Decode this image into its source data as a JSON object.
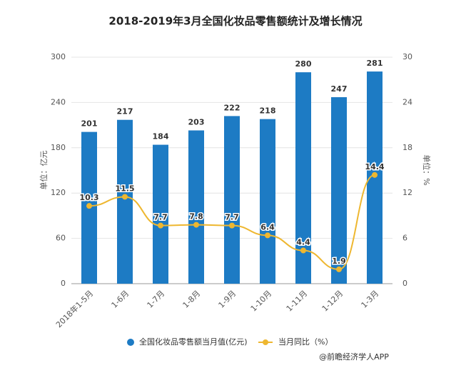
{
  "chart_data": {
    "type": "bar-line",
    "title": "2018-2019年3月全国化妆品零售额统计及增长情况",
    "categories": [
      "2018年1-5月",
      "1-6月",
      "1-7月",
      "1-8月",
      "1-9月",
      "1-10月",
      "1-11月",
      "1-12月",
      "1-3月"
    ],
    "series": [
      {
        "name": "全国化妆品零售额当月值(亿元)",
        "color": "#1d7bc4",
        "type": "bar",
        "values": [
          201,
          217,
          184,
          203,
          222,
          218,
          280,
          247,
          281
        ]
      },
      {
        "name": "当月同比（%）",
        "color": "#eeb730",
        "type": "line",
        "axis": "y2",
        "values": [
          10.3,
          11.5,
          7.7,
          7.8,
          7.7,
          6.4,
          4.4,
          1.9,
          14.4
        ]
      }
    ],
    "ylabel": "单位：亿元",
    "y2label": "单位：%",
    "ylim": [
      0,
      300
    ],
    "yticks": [
      0,
      60,
      120,
      180,
      240,
      300
    ],
    "y2lim": [
      0,
      30
    ],
    "y2ticks": [
      0,
      6,
      12,
      18,
      24,
      30
    ],
    "source": "@前瞻经济学人APP"
  }
}
